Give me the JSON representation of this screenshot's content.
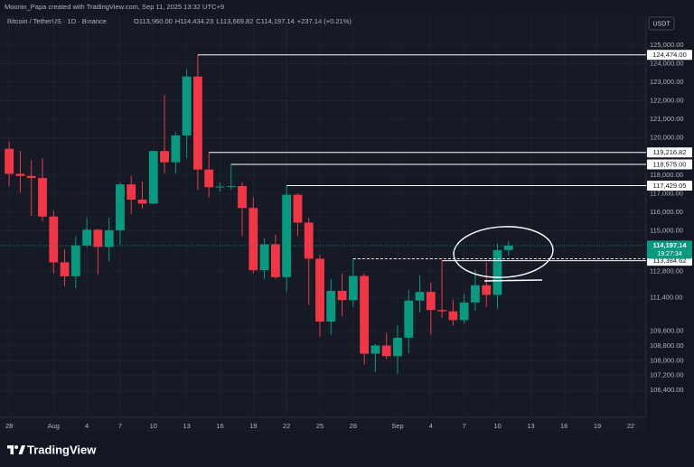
{
  "watermark": "Moonin_Papa created with TradingView.com, Sep 11, 2025 13:32 UTC+9",
  "brand": "TradingView",
  "currency": "USDT",
  "chart_data": {
    "type": "candlestick",
    "symbol": "Bitcoin / TetherUS · 1D · Binance",
    "legend_ohlc": [
      "O113,960.00",
      "H114,434.23",
      "L113,669.82",
      "C114,197.14",
      "+237.14 (+0.21%)"
    ],
    "up_color": "#089981",
    "down_color": "#f23645",
    "categories": [
      "28",
      null,
      null,
      null,
      "Aug",
      null,
      null,
      "4",
      null,
      null,
      "7",
      null,
      null,
      "10",
      null,
      null,
      "13",
      null,
      null,
      "16",
      null,
      null,
      "19",
      null,
      null,
      "22",
      null,
      null,
      "25",
      null,
      null,
      "28",
      null,
      null,
      null,
      "Sep",
      null,
      null,
      "4",
      null,
      null,
      "7",
      null,
      null,
      "10",
      null,
      null,
      "13",
      null,
      null,
      "16",
      null,
      null,
      "19",
      null,
      null,
      "22"
    ],
    "open": [
      119415,
      118062,
      117950,
      117840,
      115765,
      113298,
      112547,
      114208,
      115055,
      114130,
      115024,
      117497,
      116675,
      116462,
      119294,
      118686,
      120134,
      123306,
      118295,
      117342,
      117380,
      117405,
      116227,
      112873,
      114271,
      112500,
      116936,
      115438,
      113493,
      110111,
      111763,
      111262,
      112566,
      108377,
      108817,
      108246,
      109237,
      111240,
      111705,
      110730,
      110659,
      110187,
      111137,
      112066,
      111546,
      113960,
      null,
      null,
      null,
      null,
      null,
      null,
      null,
      null,
      null,
      null,
      null
    ],
    "high": [
      119800,
      119300,
      118800,
      118900,
      116100,
      114000,
      114700,
      115700,
      115100,
      115700,
      117600,
      117950,
      117650,
      119300,
      122300,
      120300,
      123700,
      124474,
      119216.82,
      117600,
      118575,
      117600,
      116800,
      114600,
      114800,
      117429.05,
      117000,
      115700,
      113700,
      112400,
      112700,
      113485.9,
      112700,
      108900,
      109500,
      109900,
      111800,
      112600,
      112200,
      113384.62,
      111300,
      111600,
      112900,
      113300,
      114300,
      114434.23,
      null,
      null,
      null,
      null,
      null,
      null,
      null,
      null,
      null,
      null,
      null
    ],
    "low": [
      117400,
      117050,
      115800,
      115500,
      112700,
      112000,
      111900,
      114100,
      112650,
      113350,
      114250,
      115900,
      116200,
      116450,
      118100,
      118100,
      118900,
      117200,
      116800,
      117100,
      117200,
      114700,
      112700,
      112400,
      112400,
      111700,
      114700,
      111000,
      109300,
      109400,
      110400,
      110900,
      107800,
      107400,
      108100,
      107300,
      108400,
      110600,
      109400,
      110300,
      109900,
      110000,
      110700,
      110900,
      110800,
      113669.82,
      null,
      null,
      null,
      null,
      null,
      null,
      null,
      null,
      null,
      null,
      null
    ],
    "close": [
      118062,
      117950,
      117840,
      115765,
      113298,
      112547,
      114208,
      115055,
      114130,
      115024,
      117497,
      116675,
      116462,
      119294,
      118686,
      120134,
      123306,
      118295,
      117342,
      117380,
      117405,
      116227,
      112873,
      114271,
      112500,
      116936,
      115438,
      113493,
      110111,
      111763,
      111262,
      112566,
      108377,
      108817,
      108246,
      109237,
      111240,
      111705,
      110730,
      110659,
      110187,
      111137,
      112066,
      111546,
      113960,
      114197.14,
      null,
      null,
      null,
      null,
      null,
      null,
      null,
      null,
      null,
      null,
      null
    ],
    "ylim": [
      104950,
      126600
    ],
    "yticks": [
      {
        "value": 125000,
        "label": "125,000.00"
      },
      {
        "value": 124000,
        "label": "124,000.00"
      },
      {
        "value": 123000,
        "label": "123,000.00"
      },
      {
        "value": 122000,
        "label": "122,000.00"
      },
      {
        "value": 121000,
        "label": "121,000.00"
      },
      {
        "value": 120000,
        "label": "120,000.00"
      },
      {
        "value": 118000,
        "label": "118,000.00"
      },
      {
        "value": 117000,
        "label": "117,000.00"
      },
      {
        "value": 116000,
        "label": "116,000.00"
      },
      {
        "value": 115000,
        "label": "115,000.00"
      },
      {
        "value": 112800,
        "label": "112,800.00"
      },
      {
        "value": 111400,
        "label": "111,400.00"
      },
      {
        "value": 109600,
        "label": "109,600.00"
      },
      {
        "value": 108800,
        "label": "108,800.00"
      },
      {
        "value": 108000,
        "label": "108,000.00"
      },
      {
        "value": 107200,
        "label": "107,200.00"
      },
      {
        "value": 106400,
        "label": "106,400.00"
      }
    ],
    "grid": true,
    "price_lines": [
      {
        "value": 124474,
        "label": "124,474.00"
      },
      {
        "value": 119216.82,
        "label": "119,216.82"
      },
      {
        "value": 118575,
        "label": "118,575.00"
      },
      {
        "value": 117429.05,
        "label": "117,429.05"
      },
      {
        "value": 113485.9,
        "label": "113,485.90",
        "dashed": true
      },
      {
        "value": 113384.62,
        "label": "113,384.62"
      }
    ],
    "last_price": {
      "value": 114197.14,
      "label": "114,197.14",
      "countdown": "19:27:34",
      "color": "#089981"
    }
  }
}
